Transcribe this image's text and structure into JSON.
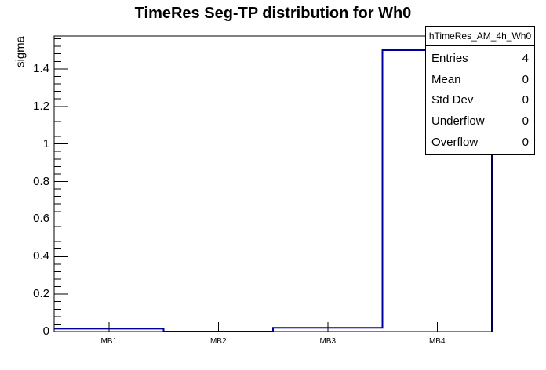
{
  "chart_data": {
    "type": "bar",
    "style": "root-histogram-outline",
    "title": "TimeRes Seg-TP distribution for Wh0",
    "xlabel": "",
    "ylabel": "sigma",
    "categories": [
      "MB1",
      "MB2",
      "MB3",
      "MB4"
    ],
    "values": [
      0.015,
      0,
      0.02,
      1.5
    ],
    "ylim": [
      0,
      1.575
    ],
    "y_major_ticks": [
      0,
      0.2,
      0.4,
      0.6,
      0.8,
      1,
      1.2,
      1.4
    ],
    "y_tick_labels": [
      "0",
      "0.2",
      "0.4",
      "0.6",
      "0.8",
      "1",
      "1.2",
      "1.4"
    ],
    "y_minor_step": 0.04,
    "grid": false,
    "legend": false,
    "line_color": "#0000a0",
    "frame_color": "#000000",
    "background_color": "#ffffff"
  },
  "stats_box": {
    "header": "hTimeRes_AM_4h_Wh0",
    "rows": [
      {
        "label": "Entries",
        "value": "4"
      },
      {
        "label": "Mean",
        "value": "0"
      },
      {
        "label": "Std Dev",
        "value": "0"
      },
      {
        "label": "Underflow",
        "value": "0"
      },
      {
        "label": "Overflow",
        "value": "0"
      }
    ]
  }
}
